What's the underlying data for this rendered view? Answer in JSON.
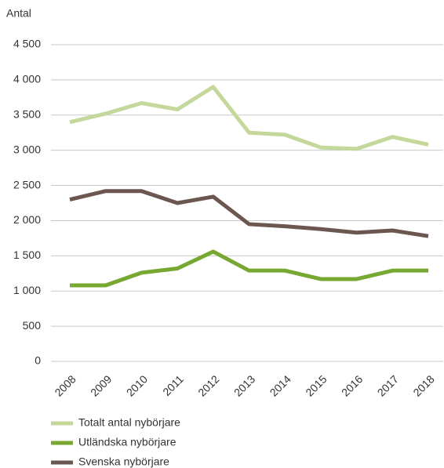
{
  "chart_data": {
    "type": "line",
    "y_label": "Antal",
    "categories": [
      "2008",
      "2009",
      "2010",
      "2011",
      "2012",
      "2013",
      "2014",
      "2015",
      "2016",
      "2017",
      "2018"
    ],
    "series": [
      {
        "name": "Totalt antal nybörjare",
        "color": "#c5d89b",
        "values": [
          3400,
          3520,
          3670,
          3580,
          3900,
          3250,
          3220,
          3040,
          3020,
          3190,
          3080
        ]
      },
      {
        "name": "Utländska nybörjare",
        "color": "#76a832",
        "values": [
          1080,
          1080,
          1260,
          1320,
          1560,
          1290,
          1290,
          1170,
          1170,
          1290,
          1290
        ]
      },
      {
        "name": "Svenska nybörjare",
        "color": "#6b5650",
        "values": [
          2300,
          2420,
          2420,
          2250,
          2340,
          1950,
          1920,
          1880,
          1830,
          1860,
          1780
        ]
      }
    ],
    "ylim": [
      0,
      4500
    ],
    "yticks": [
      0,
      500,
      {
        "value": 1000,
        "label": "1 000"
      },
      {
        "value": 1500,
        "label": "1 500"
      },
      {
        "value": 2000,
        "label": "2 000"
      },
      {
        "value": 2500,
        "label": "2 500"
      },
      {
        "value": 3000,
        "label": "3 000"
      },
      {
        "value": 3500,
        "label": "3 500"
      },
      {
        "value": 4000,
        "label": "4 000"
      },
      {
        "value": 4500,
        "label": "4 500"
      }
    ],
    "grid": true,
    "legend": "bottom"
  }
}
